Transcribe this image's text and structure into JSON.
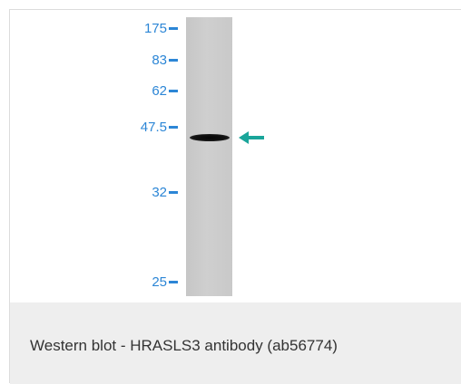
{
  "markers": {
    "m175": "175",
    "m83": "83",
    "m62": "62",
    "m475": "47.5",
    "m32": "32",
    "m25": "25"
  },
  "colors": {
    "marker": "#2c86d6",
    "arrow": "#1aa59a",
    "caption_bg": "#eeeeee"
  },
  "caption": "Western blot - HRASLS3 antibody (ab56774)"
}
